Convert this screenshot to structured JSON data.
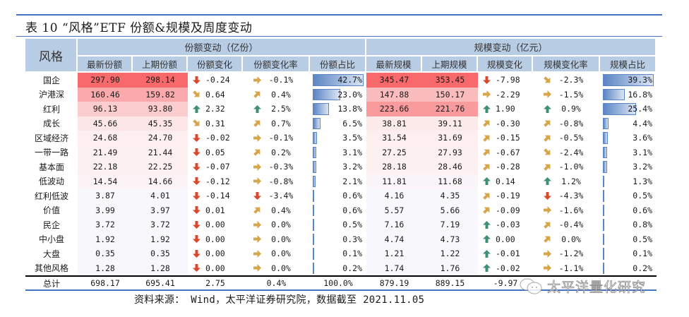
{
  "title": "表 10  “风格”ETF 份额&规模及周度变动",
  "header": {
    "style_col": "风格",
    "share_group": "份额变动（亿份）",
    "scale_group": "规模变动（亿元）",
    "columns": [
      "最新份额",
      "上期份额",
      "份额变化",
      "份额变化率",
      "份额占比",
      "最新规模",
      "上期规模",
      "规模变化",
      "规模变化率",
      "规模占比"
    ]
  },
  "colors": {
    "header_bg": "#b8cce4",
    "rule": "#4472c4",
    "up_green": "#3f8f77",
    "down_red": "#d9482b",
    "side_gold": "#d8a64a",
    "bar_blue": "#5b85c4"
  },
  "rows": [
    {
      "name": "国企",
      "share_new": "297.90",
      "share_old": "298.14",
      "share_chg": "-0.24",
      "share_chg_icon": "down",
      "share_rate": "-0.1%",
      "share_rate_icon": "right",
      "share_pct": "42.7%",
      "share_bar": 42.7,
      "scale_new": "345.47",
      "scale_old": "353.45",
      "scale_chg": "-7.98",
      "scale_chg_icon": "down",
      "scale_rate": "-2.3%",
      "scale_rate_icon": "down-right",
      "scale_pct": "39.3%",
      "scale_bar": 39.3,
      "share_heat": "#f8696b",
      "scale_heat": "#f8696b"
    },
    {
      "name": "沪港深",
      "share_new": "160.46",
      "share_old": "159.82",
      "share_chg": "0.64",
      "share_chg_icon": "down-right",
      "share_rate": "0.4%",
      "share_rate_icon": "up-right",
      "share_pct": "23.0%",
      "share_bar": 23.0,
      "scale_new": "147.88",
      "scale_old": "150.17",
      "scale_chg": "-2.29",
      "scale_chg_icon": "right",
      "scale_rate": "-1.5%",
      "scale_rate_icon": "right",
      "scale_pct": "16.8%",
      "scale_bar": 16.8,
      "share_heat": "#faaaac",
      "scale_heat": "#fbbcbd"
    },
    {
      "name": "红利",
      "share_new": "96.13",
      "share_old": "93.80",
      "share_chg": "2.32",
      "share_chg_icon": "up",
      "share_rate": "2.5%",
      "share_rate_icon": "up",
      "share_pct": "13.8%",
      "share_bar": 13.8,
      "scale_new": "223.66",
      "scale_old": "221.76",
      "scale_chg": "1.90",
      "scale_chg_icon": "up",
      "scale_rate": "0.9%",
      "scale_rate_icon": "up",
      "scale_pct": "25.4%",
      "scale_bar": 25.4,
      "share_heat": "#fccdce",
      "scale_heat": "#f99a9c"
    },
    {
      "name": "成长",
      "share_new": "45.66",
      "share_old": "45.35",
      "share_chg": "0.31",
      "share_chg_icon": "down-right",
      "share_rate": "0.7%",
      "share_rate_icon": "up-right",
      "share_pct": "6.5%",
      "share_bar": 6.5,
      "scale_new": "38.81",
      "scale_old": "39.11",
      "scale_chg": "-0.30",
      "scale_chg_icon": "up-right",
      "scale_rate": "-0.8%",
      "scale_rate_icon": "up-right",
      "scale_pct": "4.4%",
      "scale_bar": 4.4,
      "share_heat": "#fde6e7",
      "scale_heat": "#fdeaeb"
    },
    {
      "name": "区域经济",
      "share_new": "24.68",
      "share_old": "24.70",
      "share_chg": "-0.02",
      "share_chg_icon": "down",
      "share_rate": "-0.1%",
      "share_rate_icon": "right",
      "share_pct": "3.5%",
      "share_bar": 3.5,
      "scale_new": "31.54",
      "scale_old": "31.69",
      "scale_chg": "-0.15",
      "scale_chg_icon": "up-right",
      "scale_rate": "-0.5%",
      "scale_rate_icon": "up-right",
      "scale_pct": "3.6%",
      "scale_bar": 3.6,
      "share_heat": "#fdeef0",
      "scale_heat": "#fdeef0"
    },
    {
      "name": "一带一路",
      "share_new": "21.49",
      "share_old": "21.44",
      "share_chg": "0.05",
      "share_chg_icon": "down",
      "share_rate": "0.2%",
      "share_rate_icon": "up-right",
      "share_pct": "3.1%",
      "share_bar": 3.1,
      "scale_new": "27.25",
      "scale_old": "27.93",
      "scale_chg": "-0.67",
      "scale_chg_icon": "up-right",
      "scale_rate": "-2.4%",
      "scale_rate_icon": "down-right",
      "scale_pct": "3.1%",
      "scale_bar": 3.1,
      "share_heat": "#fdf0f1",
      "scale_heat": "#fdf0f1"
    },
    {
      "name": "基本面",
      "share_new": "22.18",
      "share_old": "22.25",
      "share_chg": "-0.07",
      "share_chg_icon": "down",
      "share_rate": "-0.3%",
      "share_rate_icon": "right",
      "share_pct": "3.2%",
      "share_bar": 3.2,
      "scale_new": "28.18",
      "scale_old": "28.46",
      "scale_chg": "-0.28",
      "scale_chg_icon": "up-right",
      "scale_rate": "-1.0%",
      "scale_rate_icon": "up-right",
      "scale_pct": "3.2%",
      "scale_bar": 3.2,
      "share_heat": "#fdf0f1",
      "scale_heat": "#fdf0f1"
    },
    {
      "name": "低波动",
      "share_new": "14.54",
      "share_old": "14.66",
      "share_chg": "-0.12",
      "share_chg_icon": "down",
      "share_rate": "-0.8%",
      "share_rate_icon": "right",
      "share_pct": "2.1%",
      "share_bar": 2.1,
      "scale_new": "11.81",
      "scale_old": "11.68",
      "scale_chg": "0.14",
      "scale_chg_icon": "up",
      "scale_rate": "1.2%",
      "scale_rate_icon": "up",
      "scale_pct": "1.3%",
      "scale_bar": 1.3,
      "share_heat": "#fbf3f5",
      "scale_heat": "#f9f5f8"
    },
    {
      "name": "红利低波",
      "share_new": "3.87",
      "share_old": "4.01",
      "share_chg": "-0.14",
      "share_chg_icon": "down",
      "share_rate": "-3.4%",
      "share_rate_icon": "down",
      "share_pct": "0.6%",
      "share_bar": 0.6,
      "scale_new": "4.16",
      "scale_old": "4.35",
      "scale_chg": "-0.19",
      "scale_chg_icon": "up-right",
      "scale_rate": "-4.3%",
      "scale_rate_icon": "down",
      "scale_pct": "0.5%",
      "scale_bar": 0.5,
      "share_heat": "#f8f8fc",
      "scale_heat": "#f8f8fc"
    },
    {
      "name": "价值",
      "share_new": "3.99",
      "share_old": "3.97",
      "share_chg": "0.01",
      "share_chg_icon": "down",
      "share_rate": "0.4%",
      "share_rate_icon": "up-right",
      "share_pct": "0.6%",
      "share_bar": 0.6,
      "scale_new": "5.57",
      "scale_old": "5.66",
      "scale_chg": "-0.09",
      "scale_chg_icon": "up-right",
      "scale_rate": "-1.6%",
      "scale_rate_icon": "right",
      "scale_pct": "0.6%",
      "scale_bar": 0.6,
      "share_heat": "#f8f8fc",
      "scale_heat": "#f8f8fc"
    },
    {
      "name": "民企",
      "share_new": "3.72",
      "share_old": "3.72",
      "share_chg": "0.00",
      "share_chg_icon": "down",
      "share_rate": "0.0%",
      "share_rate_icon": "right",
      "share_pct": "0.5%",
      "share_bar": 0.5,
      "scale_new": "7.16",
      "scale_old": "7.19",
      "scale_chg": "-0.03",
      "scale_chg_icon": "up",
      "scale_rate": "-0.4%",
      "scale_rate_icon": "up-right",
      "scale_pct": "0.8%",
      "scale_bar": 0.8,
      "share_heat": "#f8f8fc",
      "scale_heat": "#f8f8fc"
    },
    {
      "name": "中小盘",
      "share_new": "1.92",
      "share_old": "1.92",
      "share_chg": "0.00",
      "share_chg_icon": "down",
      "share_rate": "0.0%",
      "share_rate_icon": "right",
      "share_pct": "0.3%",
      "share_bar": 0.3,
      "scale_new": "4.74",
      "scale_old": "4.73",
      "scale_chg": "0.00",
      "scale_chg_icon": "up",
      "scale_rate": "0.0%",
      "scale_rate_icon": "up-right",
      "scale_pct": "0.5%",
      "scale_bar": 0.5,
      "share_heat": "#f8f8fc",
      "scale_heat": "#f8f8fc"
    },
    {
      "name": "大盘",
      "share_new": "0.35",
      "share_old": "0.35",
      "share_chg": "0.00",
      "share_chg_icon": "down",
      "share_rate": "0.0%",
      "share_rate_icon": "right",
      "share_pct": "0.1%",
      "share_bar": 0.1,
      "scale_new": "1.21",
      "scale_old": "1.22",
      "scale_chg": "-0.01",
      "scale_chg_icon": "up",
      "scale_rate": "-1.2%",
      "scale_rate_icon": "right",
      "scale_pct": "0.1%",
      "scale_bar": 0.1,
      "share_heat": "#f8f8fc",
      "scale_heat": "#f8f8fc"
    },
    {
      "name": "其他风格",
      "share_new": "1.28",
      "share_old": "1.28",
      "share_chg": "0.00",
      "share_chg_icon": "down",
      "share_rate": "0.0%",
      "share_rate_icon": "right",
      "share_pct": "0.2%",
      "share_bar": 0.2,
      "scale_new": "1.74",
      "scale_old": "1.76",
      "scale_chg": "-0.02",
      "scale_chg_icon": "up",
      "scale_rate": "-1.1%",
      "scale_rate_icon": "right",
      "scale_pct": "0.2%",
      "scale_bar": 0.2,
      "share_heat": "#f8f8fc",
      "scale_heat": "#f8f8fc"
    }
  ],
  "total": {
    "name": "总计",
    "share_new": "698.17",
    "share_old": "695.41",
    "share_chg": "2.75",
    "share_rate": "0.4%",
    "share_pct": "100.0%",
    "scale_new": "879.19",
    "scale_old": "889.15",
    "scale_chg": "-9.97"
  },
  "source": "资料来源： Wind，太平洋证券研究院，数据截至 2021.11.05",
  "watermark": "太平洋量化研究"
}
